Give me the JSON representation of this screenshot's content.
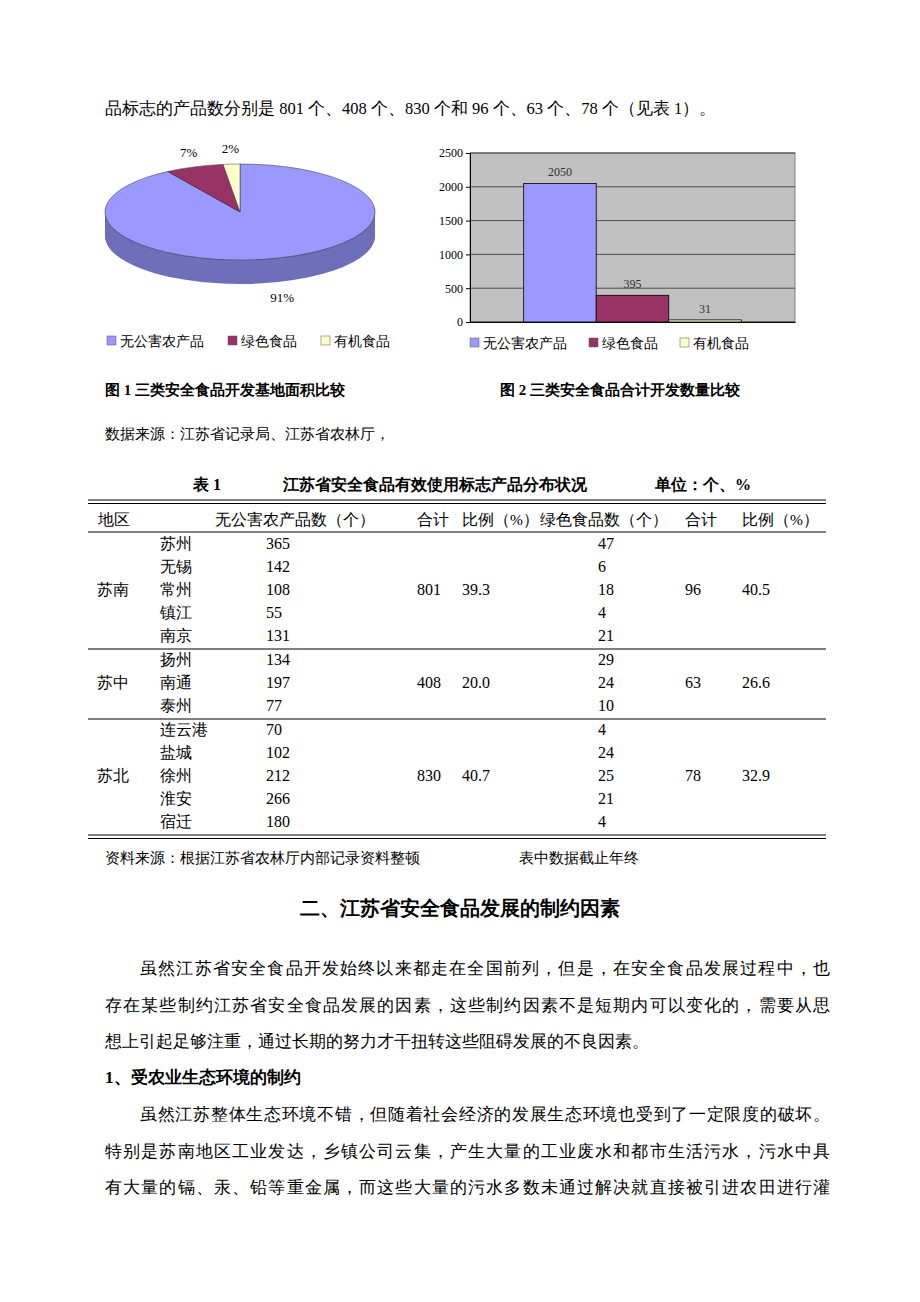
{
  "intro": "品标志的产品数分别是 801 个、408 个、830 个和 96 个、63 个、78 个（见表 1）。",
  "chart_data": [
    {
      "type": "pie",
      "title": "图 1 三类安全食品开发基地面积比较",
      "categories": [
        "无公害农产品",
        "绿色食品",
        "有机食品"
      ],
      "values": [
        91,
        7,
        2
      ],
      "value_labels": [
        "91%",
        "7%",
        "2%"
      ],
      "colors": [
        "#9999ff",
        "#993366",
        "#ffffcc"
      ],
      "data_labels": true,
      "legend": "bottom"
    },
    {
      "type": "bar",
      "title": "图 2 三类安全食品合计开发数量比较",
      "categories": [
        null
      ],
      "series": [
        {
          "name": "无公害农产品",
          "color": "#9999ff",
          "values": [
            2050
          ]
        },
        {
          "name": "绿色食品",
          "color": "#993366",
          "values": [
            395
          ]
        },
        {
          "name": "有机食品",
          "color": "#ffffcc",
          "values": [
            31
          ]
        }
      ],
      "ylim": [
        0,
        2500
      ],
      "yticks": [
        0,
        500,
        1000,
        1500,
        2000,
        2500
      ],
      "grid": true,
      "data_labels": true,
      "tick_labels": "y",
      "legend": "bottom"
    }
  ],
  "figure_source": "数据来源：江苏省记录局、江苏省农林厅，",
  "table": {
    "label": "表 1",
    "title": "江苏省安全食品有效使用标志产品分布状况",
    "unit": "单位：个、%",
    "header": [
      "地区",
      "无公害农产品数（个）",
      "合计",
      "比例（%）",
      "绿色食品数（个）",
      "合计",
      "比例（%）"
    ],
    "groups": [
      {
        "region": "苏南",
        "rows": [
          [
            "苏州",
            "365",
            "47"
          ],
          [
            "无锡",
            "142",
            "6"
          ],
          [
            "常州",
            "108",
            "18"
          ],
          [
            "镇江",
            "55",
            "4"
          ],
          [
            "南京",
            "131",
            "21"
          ]
        ],
        "wu_total": "801",
        "wu_ratio": "39.3",
        "green_total": "96",
        "green_ratio": "40.5"
      },
      {
        "region": "苏中",
        "rows": [
          [
            "扬州",
            "134",
            "29"
          ],
          [
            "南通",
            "197",
            "24"
          ],
          [
            "泰州",
            "77",
            "10"
          ]
        ],
        "wu_total": "408",
        "wu_ratio": "20.0",
        "green_total": "63",
        "green_ratio": "26.6"
      },
      {
        "region": "苏北",
        "rows": [
          [
            "连云港",
            "70",
            "4"
          ],
          [
            "盐城",
            "102",
            "24"
          ],
          [
            "徐州",
            "212",
            "25"
          ],
          [
            "淮安",
            "266",
            "21"
          ],
          [
            "宿迁",
            "180",
            "4"
          ]
        ],
        "wu_total": "830",
        "wu_ratio": "40.7",
        "green_total": "78",
        "green_ratio": "32.9"
      }
    ],
    "notes": [
      "资料来源：根据江苏省农林厅内部记录资料整顿",
      "表中数据截止年终"
    ]
  },
  "section_heading": "二、江苏省安全食品发展的制约因素",
  "paragraph_1": [
    "虽然江苏省安全食品开发始终以来都走在全国前列，但是，在安全食品发展过程中，也",
    "存在某些制约江苏省安全食品发展的因素，这些制约因素不是短期内可以变化的，需要从思",
    "想上引起足够注重，通过长期的努力才干扭转这些阻碍发展的不良因素。"
  ],
  "subheading": "1、受农业生态环境的制约",
  "paragraph_2": [
    "虽然江苏整体生态环境不错，但随着社会经济的发展生态环境也受到了一定限度的破坏。",
    "特别是苏南地区工业发达，乡镇公司云集，产生大量的工业废水和都市生活污水，污水中具",
    "有大量的镉、汞、铅等重金属，而这些大量的污水多数未通过解决就直接被引进农田进行灌"
  ]
}
